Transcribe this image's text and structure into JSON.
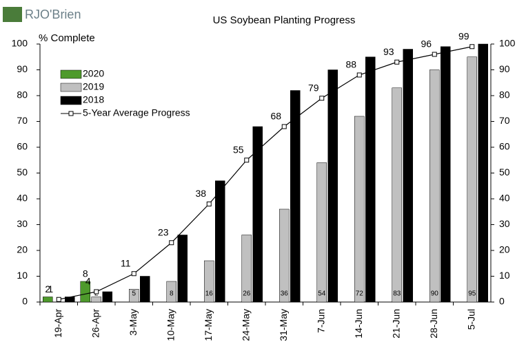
{
  "logo": "RJO'Brien",
  "chart_data": {
    "type": "bar",
    "title": "US Soybean Planting Progress",
    "y_label": "% Complete",
    "categories": [
      "19-Apr",
      "26-Apr",
      "3-May",
      "10-May",
      "17-May",
      "24-May",
      "31-May",
      "7-Jun",
      "14-Jun",
      "21-Jun",
      "28-Jun",
      "5-Jul"
    ],
    "series": [
      {
        "name": "2020",
        "color": "#4e9a2c",
        "values": [
          2,
          8,
          null,
          null,
          null,
          null,
          null,
          null,
          null,
          null,
          null,
          null
        ]
      },
      {
        "name": "2019",
        "color": "#c0c0c0",
        "values": [
          null,
          2,
          5,
          8,
          16,
          26,
          36,
          54,
          72,
          83,
          90,
          95
        ]
      },
      {
        "name": "2018",
        "color": "#000000",
        "values": [
          2,
          4,
          10,
          26,
          47,
          68,
          82,
          90,
          95,
          98,
          99,
          100
        ]
      },
      {
        "name": "5-Year Average Progress",
        "type": "line",
        "color": "#000000",
        "values": [
          1,
          4,
          11,
          23,
          38,
          55,
          68,
          79,
          88,
          93,
          96,
          99
        ]
      }
    ],
    "ylim": [
      0,
      100
    ],
    "yticks": [
      0,
      10,
      20,
      30,
      40,
      50,
      60,
      70,
      80,
      90,
      100
    ],
    "y2lim": [
      0,
      100
    ],
    "y2ticks": [
      0,
      10,
      20,
      30,
      40,
      50,
      60,
      70,
      80,
      90,
      100
    ],
    "grid": false,
    "legend": "upper left"
  }
}
